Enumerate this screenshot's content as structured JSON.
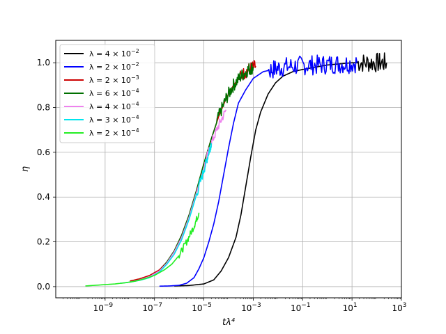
{
  "chart_data": {
    "type": "line",
    "title": "",
    "xlabel": "tλ⁴",
    "ylabel": "η",
    "xscale": "log",
    "xlim": [
      1e-11,
      1000.0
    ],
    "ylim": [
      -0.05,
      1.1
    ],
    "grid": true,
    "legend_position": "top-left",
    "x_ticks": [
      {
        "value": 1e-09,
        "base": "10",
        "exp": "−9"
      },
      {
        "value": 1e-07,
        "base": "10",
        "exp": "−7"
      },
      {
        "value": 1e-05,
        "base": "10",
        "exp": "−5"
      },
      {
        "value": 0.001,
        "base": "10",
        "exp": "−3"
      },
      {
        "value": 0.1,
        "base": "10",
        "exp": "−1"
      },
      {
        "value": 10.0,
        "base": "10",
        "exp": "1"
      },
      {
        "value": 1000.0,
        "base": "10",
        "exp": "3"
      }
    ],
    "y_ticks": [
      {
        "value": 0.0,
        "label": "0.0"
      },
      {
        "value": 0.2,
        "label": "0.2"
      },
      {
        "value": 0.4,
        "label": "0.4"
      },
      {
        "value": 0.6,
        "label": "0.6"
      },
      {
        "value": 0.8,
        "label": "0.8"
      },
      {
        "value": 1.0,
        "label": "1.0"
      }
    ],
    "series": [
      {
        "name": "λ = 4 × 10⁻²",
        "lambda": "λ = 4 × 10",
        "exp": "−2",
        "color": "#000000",
        "points": [
          [
            -6.2,
            0.003
          ],
          [
            -5.6,
            0.005
          ],
          [
            -5.0,
            0.012
          ],
          [
            -4.6,
            0.03
          ],
          [
            -4.3,
            0.07
          ],
          [
            -4.0,
            0.13
          ],
          [
            -3.7,
            0.22
          ],
          [
            -3.5,
            0.32
          ],
          [
            -3.3,
            0.45
          ],
          [
            -3.1,
            0.58
          ],
          [
            -2.9,
            0.7
          ],
          [
            -2.7,
            0.78
          ],
          [
            -2.4,
            0.86
          ],
          [
            -2.1,
            0.91
          ],
          [
            -1.8,
            0.94
          ],
          [
            -1.4,
            0.96
          ],
          [
            -1.0,
            0.97
          ],
          [
            -0.5,
            0.98
          ],
          [
            0.0,
            0.99
          ],
          [
            0.5,
            0.995
          ],
          [
            1.0,
            1.0
          ],
          [
            1.5,
            1.0
          ],
          [
            2.0,
            1.0
          ],
          [
            2.4,
            1.0
          ]
        ],
        "noise_from": 1.2,
        "noise_amp": 0.045
      },
      {
        "name": "λ = 2 × 10⁻²",
        "lambda": "λ = 2 × 10",
        "exp": "−2",
        "color": "#0000ff",
        "points": [
          [
            -6.8,
            0.002
          ],
          [
            -6.4,
            0.003
          ],
          [
            -6.0,
            0.006
          ],
          [
            -5.7,
            0.015
          ],
          [
            -5.4,
            0.04
          ],
          [
            -5.2,
            0.08
          ],
          [
            -5.0,
            0.13
          ],
          [
            -4.8,
            0.2
          ],
          [
            -4.6,
            0.28
          ],
          [
            -4.4,
            0.38
          ],
          [
            -4.2,
            0.5
          ],
          [
            -4.0,
            0.62
          ],
          [
            -3.8,
            0.73
          ],
          [
            -3.6,
            0.82
          ],
          [
            -3.3,
            0.88
          ],
          [
            -3.0,
            0.93
          ],
          [
            -2.6,
            0.96
          ],
          [
            -2.2,
            0.97
          ],
          [
            -1.8,
            0.98
          ],
          [
            -1.3,
            0.985
          ],
          [
            -0.8,
            0.99
          ],
          [
            -0.3,
            0.99
          ],
          [
            0.2,
            0.995
          ],
          [
            0.7,
            0.995
          ],
          [
            1.2,
            1.0
          ]
        ],
        "noise_from": -2.4,
        "noise_amp": 0.045
      },
      {
        "name": "λ = 2 × 10⁻³",
        "lambda": "λ = 2 × 10",
        "exp": "−3",
        "color": "#cc0000",
        "points": [
          [
            -8.0,
            0.025
          ],
          [
            -7.6,
            0.035
          ],
          [
            -7.2,
            0.05
          ],
          [
            -6.8,
            0.075
          ],
          [
            -6.5,
            0.11
          ],
          [
            -6.2,
            0.16
          ],
          [
            -5.9,
            0.23
          ],
          [
            -5.6,
            0.32
          ],
          [
            -5.3,
            0.43
          ],
          [
            -5.0,
            0.55
          ],
          [
            -4.7,
            0.66
          ],
          [
            -4.4,
            0.76
          ],
          [
            -4.1,
            0.84
          ],
          [
            -3.8,
            0.9
          ],
          [
            -3.5,
            0.94
          ],
          [
            -3.2,
            0.97
          ],
          [
            -2.9,
            0.985
          ]
        ],
        "noise_from": -3.6,
        "noise_amp": 0.03
      },
      {
        "name": "λ = 6 × 10⁻⁴",
        "lambda": "λ = 6 × 10",
        "exp": "−4",
        "color": "#007000",
        "points": [
          [
            -8.0,
            0.02
          ],
          [
            -7.6,
            0.03
          ],
          [
            -7.2,
            0.045
          ],
          [
            -6.8,
            0.07
          ],
          [
            -6.5,
            0.11
          ],
          [
            -6.2,
            0.16
          ],
          [
            -5.9,
            0.23
          ],
          [
            -5.6,
            0.32
          ],
          [
            -5.3,
            0.43
          ],
          [
            -5.0,
            0.55
          ],
          [
            -4.7,
            0.66
          ],
          [
            -4.4,
            0.76
          ],
          [
            -4.1,
            0.84
          ],
          [
            -3.8,
            0.9
          ],
          [
            -3.5,
            0.94
          ],
          [
            -3.2,
            0.97
          ],
          [
            -3.0,
            0.98
          ]
        ],
        "noise_from": -4.5,
        "noise_amp": 0.03
      },
      {
        "name": "λ = 4 × 10⁻⁴",
        "lambda": "λ = 4 × 10",
        "exp": "−4",
        "color": "#ee82ee",
        "points": [
          [
            -8.0,
            0.02
          ],
          [
            -7.6,
            0.03
          ],
          [
            -7.2,
            0.045
          ],
          [
            -6.8,
            0.07
          ],
          [
            -6.5,
            0.105
          ],
          [
            -6.2,
            0.155
          ],
          [
            -5.9,
            0.22
          ],
          [
            -5.6,
            0.31
          ],
          [
            -5.3,
            0.42
          ],
          [
            -5.0,
            0.53
          ],
          [
            -4.7,
            0.64
          ],
          [
            -4.4,
            0.72
          ],
          [
            -4.1,
            0.79
          ]
        ],
        "noise_from": -5.0,
        "noise_amp": 0.02
      },
      {
        "name": "λ = 3 × 10⁻⁴",
        "lambda": "λ = 3 × 10",
        "exp": "−4",
        "color": "#00e5ee",
        "points": [
          [
            -8.4,
            0.015
          ],
          [
            -8.0,
            0.02
          ],
          [
            -7.6,
            0.028
          ],
          [
            -7.2,
            0.04
          ],
          [
            -6.8,
            0.065
          ],
          [
            -6.5,
            0.1
          ],
          [
            -6.2,
            0.145
          ],
          [
            -5.9,
            0.21
          ],
          [
            -5.6,
            0.3
          ],
          [
            -5.3,
            0.41
          ],
          [
            -5.0,
            0.52
          ],
          [
            -4.8,
            0.6
          ],
          [
            -4.7,
            0.64
          ]
        ],
        "noise_from": -5.3,
        "noise_amp": 0.02
      },
      {
        "name": "λ = 2 × 10⁻⁴",
        "lambda": "λ = 2 × 10",
        "exp": "−4",
        "color": "#22ee22",
        "points": [
          [
            -9.8,
            0.003
          ],
          [
            -9.4,
            0.006
          ],
          [
            -9.0,
            0.009
          ],
          [
            -8.6,
            0.012
          ],
          [
            -8.2,
            0.017
          ],
          [
            -7.8,
            0.024
          ],
          [
            -7.4,
            0.035
          ],
          [
            -7.0,
            0.05
          ],
          [
            -6.6,
            0.075
          ],
          [
            -6.3,
            0.1
          ],
          [
            -6.0,
            0.14
          ],
          [
            -5.7,
            0.2
          ],
          [
            -5.4,
            0.27
          ],
          [
            -5.2,
            0.33
          ]
        ],
        "noise_from": -6.0,
        "noise_amp": 0.015
      }
    ]
  }
}
